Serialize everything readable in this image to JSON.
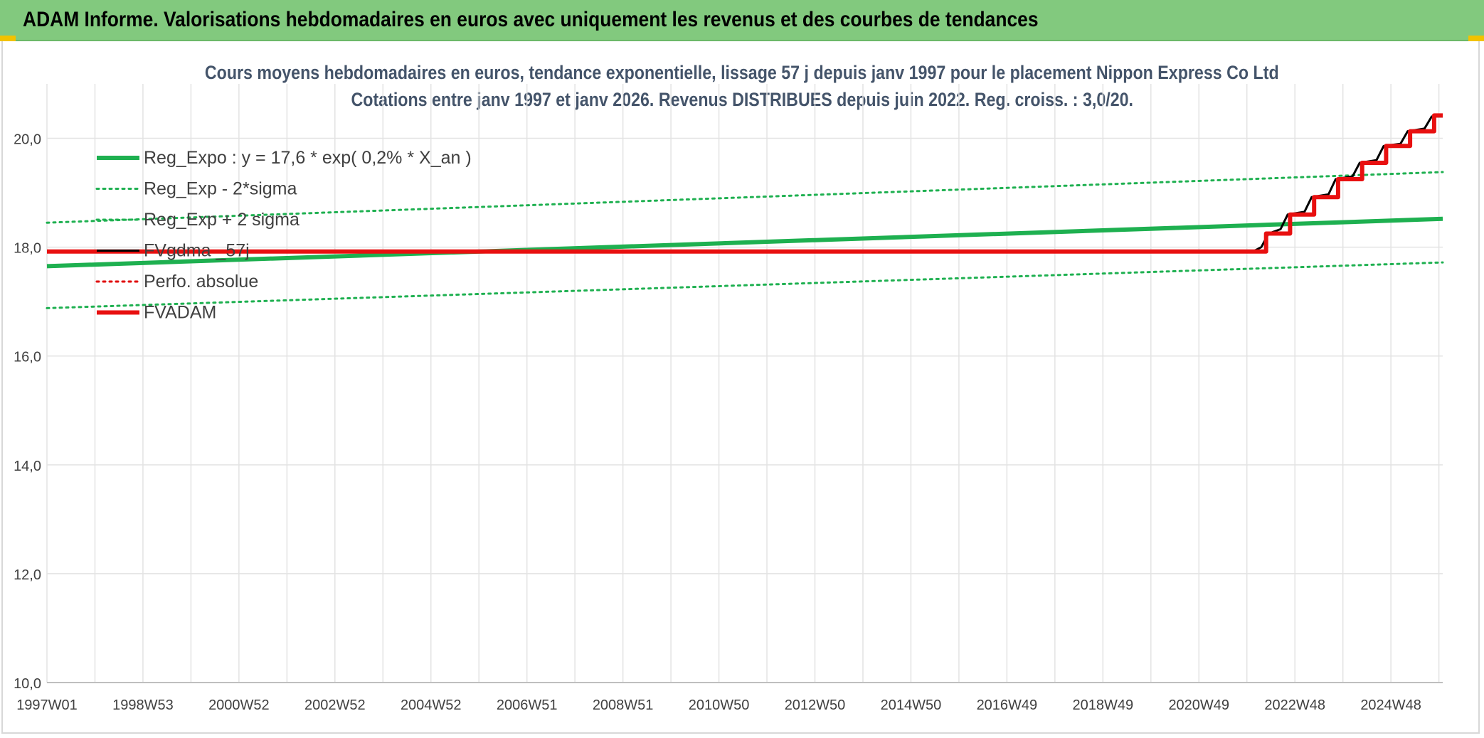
{
  "header": {
    "title": "ADAM Informe. Valorisations hebdomadaires en euros avec uniquement les revenus et des courbes de tendances"
  },
  "chart_data": {
    "type": "line",
    "title": "Cours moyens hebdomadaires en euros, tendance exponentielle, lissage 57 j depuis janv 1997 pour le placement Nippon Express Co Ltd",
    "subtitle": "Cotations entre janv 1997 et janv 2026. Revenus DISTRIBUES depuis juin 2022. Reg. croiss. : 3,0/20.",
    "xlabel": "",
    "ylabel": "",
    "xlim": [
      1997.0,
      2026.08
    ],
    "ylim": [
      10.0,
      21.0
    ],
    "yticks": [
      10.0,
      12.0,
      14.0,
      16.0,
      18.0,
      20.0
    ],
    "ytick_labels": [
      "10,0",
      "12,0",
      "14,0",
      "16,0",
      "18,0",
      "20,0"
    ],
    "xticks": [
      1997.0,
      1999.0,
      2001.0,
      2003.0,
      2005.0,
      2007.0,
      2009.0,
      2011.0,
      2013.0,
      2015.0,
      2017.0,
      2019.0,
      2021.0,
      2023.0,
      2025.0
    ],
    "xtick_labels": [
      "1997W01",
      "1998W53",
      "2000W52",
      "2002W52",
      "2004W52",
      "2006W51",
      "2008W51",
      "2010W50",
      "2012W50",
      "2014W50",
      "2016W49",
      "2018W49",
      "2020W49",
      "2022W48",
      "2024W48"
    ],
    "grid": true,
    "legend_position": "top-left",
    "series": [
      {
        "name": "Reg_Expo : y = 17,6 * exp( 0,2% *  X_an )",
        "style": "solid",
        "color": "#1eb050",
        "width": 6,
        "x": [
          1997.0,
          2026.08
        ],
        "y": [
          17.65,
          18.52
        ]
      },
      {
        "name": "Reg_Exp - 2*sigma",
        "style": "dotted",
        "color": "#1eb050",
        "width": 3,
        "x": [
          1997.0,
          2026.08
        ],
        "y": [
          16.88,
          17.72
        ]
      },
      {
        "name": "Reg_Exp + 2 sigma",
        "style": "dotted",
        "color": "#1eb050",
        "width": 3,
        "x": [
          1997.0,
          2026.08
        ],
        "y": [
          18.45,
          19.38
        ]
      },
      {
        "name": "FVgdma _57j",
        "style": "solid",
        "color": "#000000",
        "width": 3,
        "x": [
          1997.0,
          2022.15,
          2022.3,
          2022.45,
          2022.7,
          2022.85,
          2023.2,
          2023.35,
          2023.7,
          2023.85,
          2024.2,
          2024.35,
          2024.7,
          2024.85,
          2025.2,
          2025.35,
          2025.7,
          2025.85,
          2026.08
        ],
        "y": [
          17.93,
          17.93,
          18.0,
          18.25,
          18.33,
          18.6,
          18.65,
          18.92,
          18.97,
          19.25,
          19.3,
          19.55,
          19.6,
          19.86,
          19.9,
          20.13,
          20.18,
          20.4,
          20.4
        ]
      },
      {
        "name": "Perfo. absolue",
        "style": "dotted",
        "color": "#e00000",
        "width": 3,
        "x": [],
        "y": []
      },
      {
        "name": "FVADAM",
        "style": "solid",
        "color": "#e81010",
        "width": 6,
        "x": [
          1997.0,
          2022.4,
          2022.4,
          2022.9,
          2022.9,
          2023.4,
          2023.4,
          2023.9,
          2023.9,
          2024.4,
          2024.4,
          2024.9,
          2024.9,
          2025.4,
          2025.4,
          2025.9,
          2025.9,
          2026.08
        ],
        "y": [
          17.92,
          17.92,
          18.25,
          18.25,
          18.6,
          18.6,
          18.92,
          18.92,
          19.25,
          19.25,
          19.55,
          19.55,
          19.86,
          19.86,
          20.13,
          20.13,
          20.42,
          20.42
        ]
      }
    ]
  }
}
